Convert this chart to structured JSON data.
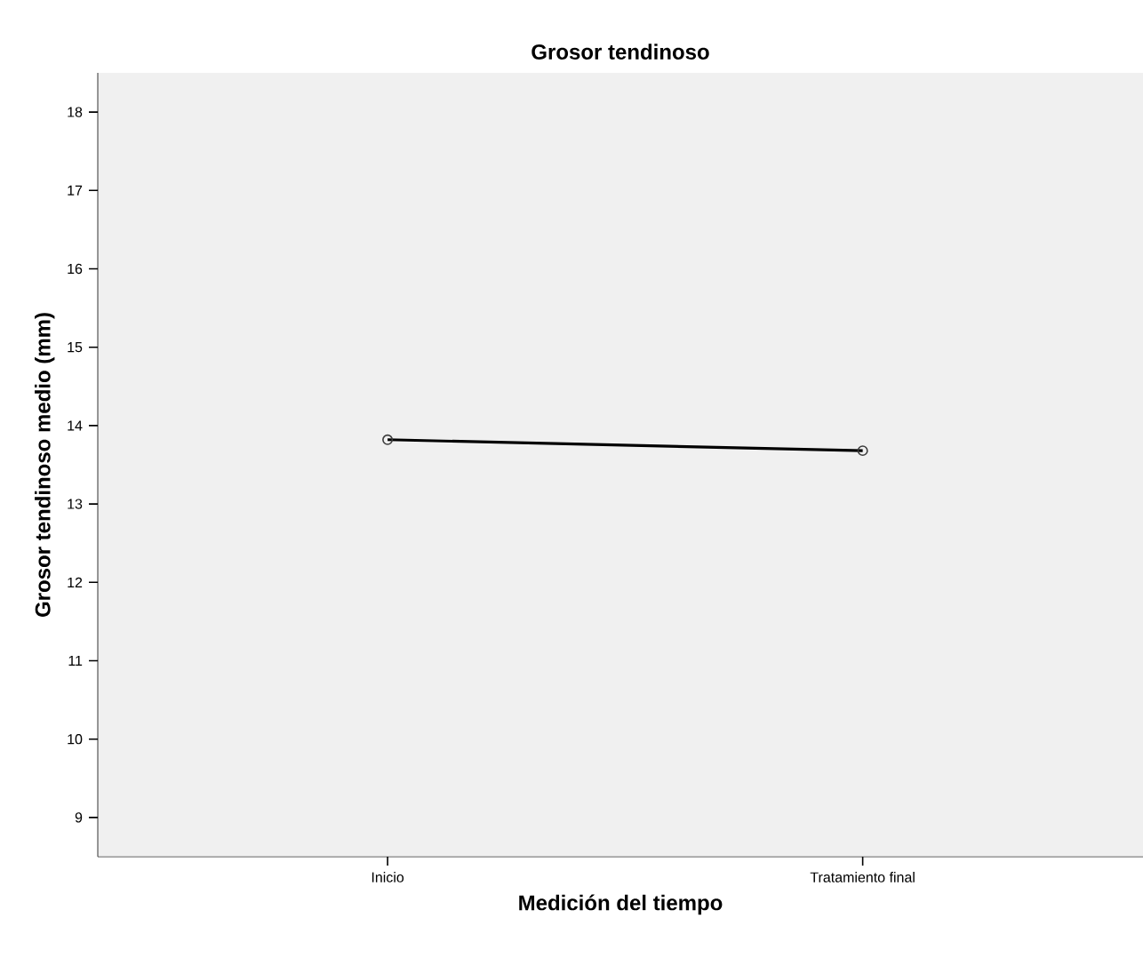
{
  "chart_data": {
    "type": "line",
    "title": "Grosor tendinoso",
    "xlabel": "Medición del tiempo",
    "ylabel": "Grosor tendinoso medio (mm)",
    "categories": [
      "Inicio",
      "Tratamiento final"
    ],
    "series": [
      {
        "color": "#000000",
        "values": [
          13.82,
          13.68
        ]
      }
    ],
    "ylim": [
      8.5,
      18.5
    ],
    "yticks": [
      9,
      10,
      11,
      12,
      13,
      14,
      15,
      16,
      17,
      18
    ],
    "marker": "circle",
    "line_style": "solid"
  }
}
